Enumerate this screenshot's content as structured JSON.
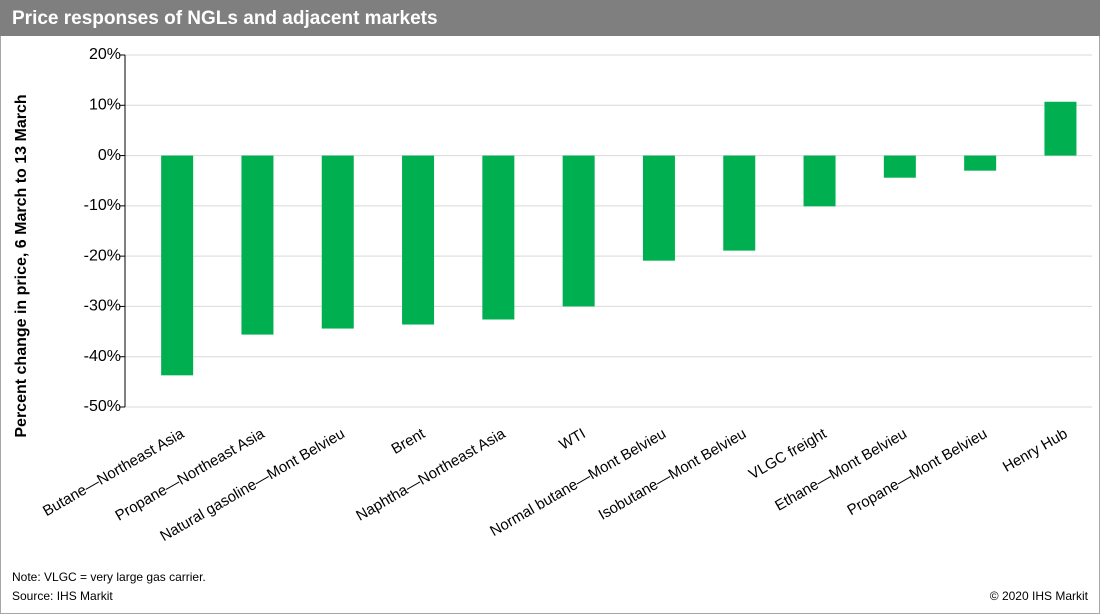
{
  "chart_data": {
    "type": "bar",
    "title": "Price responses of NGLs and adjacent markets",
    "y_label": "Percent change in price, 6 March to 13 March",
    "categories": [
      "Butane—Northeast Asia",
      "Propane—Northeast Asia",
      "Natural gasoline—Mont Belvieu",
      "Brent",
      "Naphtha—Northeast Asia",
      "WTI",
      "Normal butane—Mont Belvieu",
      "Isobutane—Mont Belvieu",
      "VLGC freight",
      "Ethane—Mont Belvieu",
      "Propane—Mont Belvieu",
      "Henry Hub"
    ],
    "values": [
      -43.7,
      -35.6,
      -34.4,
      -33.6,
      -32.6,
      -30.0,
      -20.9,
      -18.9,
      -10.1,
      -4.4,
      -3.0,
      10.7
    ],
    "color": "#00b050",
    "ylim": [
      -50,
      20
    ],
    "yticks": [
      {
        "value": -50,
        "label": "-50%"
      },
      {
        "value": -40,
        "label": "-40%"
      },
      {
        "value": -30,
        "label": "-30%"
      },
      {
        "value": -20,
        "label": "-20%"
      },
      {
        "value": -10,
        "label": "-10%"
      },
      {
        "value": 0,
        "label": "0%"
      },
      {
        "value": 10,
        "label": "10%"
      },
      {
        "value": 20,
        "label": "20%"
      }
    ],
    "grid": true,
    "note": "Note: VLGC = very large gas carrier.",
    "source": "Source: IHS Markit",
    "copyright": "© 2020 IHS Markit"
  }
}
